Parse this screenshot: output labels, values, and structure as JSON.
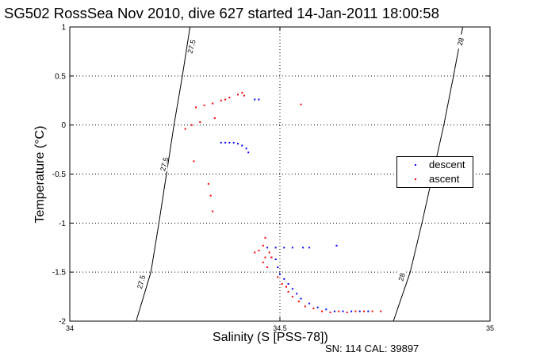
{
  "figure": {
    "title": "SG502 RossSea Nov 2010, dive 627 started 14-Jan-2011 18:00:58",
    "footer": "SN: 114  CAL: 39897"
  },
  "chart_data": {
    "type": "scatter",
    "title": "SG502 RossSea Nov 2010, dive 627 started 14-Jan-2011 18:00:58",
    "xlabel": "Salinity (S [PSS-78])",
    "ylabel": "Temperature (°C)",
    "xlim": [
      34,
      35
    ],
    "ylim": [
      -2,
      1
    ],
    "xticks": [
      "34",
      "34.5",
      "35"
    ],
    "yticks": [
      "-2",
      "-1.5",
      "-1",
      "-0.5",
      "0",
      "0.5",
      "1"
    ],
    "grid": true,
    "legend_position": "right",
    "contours": [
      {
        "level": "27.5",
        "points": [
          [
            34.286,
            1.0
          ],
          [
            34.268,
            0.5
          ],
          [
            34.248,
            0.0
          ],
          [
            34.23,
            -0.5
          ],
          [
            34.212,
            -1.0
          ],
          [
            34.193,
            -1.5
          ],
          [
            34.158,
            -2.0
          ]
        ],
        "labels": [
          {
            "text": "27.5",
            "at": [
              34.29,
              0.8
            ]
          },
          {
            "text": "27.5",
            "at": [
              34.225,
              -0.4
            ]
          },
          {
            "text": "27.5",
            "at": [
              34.17,
              -1.6
            ]
          }
        ]
      },
      {
        "level": "28",
        "points": [
          [
            34.935,
            1.0
          ],
          [
            34.913,
            0.5
          ],
          [
            34.89,
            0.0
          ],
          [
            34.864,
            -0.5
          ],
          [
            34.838,
            -1.0
          ],
          [
            34.81,
            -1.5
          ],
          [
            34.77,
            -2.0
          ]
        ],
        "labels": [
          {
            "text": "28",
            "at": [
              34.93,
              0.85
            ]
          },
          {
            "text": "28",
            "at": [
              34.79,
              -1.55
            ]
          }
        ]
      }
    ],
    "series": [
      {
        "name": "descent",
        "color": "#0000ff",
        "points": [
          [
            34.36,
            -0.18
          ],
          [
            34.37,
            -0.18
          ],
          [
            34.38,
            -0.18
          ],
          [
            34.39,
            -0.18
          ],
          [
            34.4,
            -0.19
          ],
          [
            34.41,
            -0.21
          ],
          [
            34.42,
            -0.24
          ],
          [
            34.425,
            -0.28
          ],
          [
            34.44,
            0.26
          ],
          [
            34.45,
            0.26
          ],
          [
            34.47,
            -1.25
          ],
          [
            34.49,
            -1.25
          ],
          [
            34.51,
            -1.25
          ],
          [
            34.53,
            -1.25
          ],
          [
            34.555,
            -1.25
          ],
          [
            34.57,
            -1.25
          ],
          [
            34.635,
            -1.23
          ],
          [
            34.48,
            -1.35
          ],
          [
            34.49,
            -1.37
          ],
          [
            34.495,
            -1.45
          ],
          [
            34.5,
            -1.52
          ],
          [
            34.51,
            -1.57
          ],
          [
            34.52,
            -1.62
          ],
          [
            34.53,
            -1.67
          ],
          [
            34.54,
            -1.72
          ],
          [
            34.55,
            -1.77
          ],
          [
            34.57,
            -1.82
          ],
          [
            34.59,
            -1.86
          ],
          [
            34.61,
            -1.88
          ],
          [
            34.63,
            -1.9
          ],
          [
            34.65,
            -1.9
          ],
          [
            34.67,
            -1.9
          ],
          [
            34.69,
            -1.9
          ],
          [
            34.71,
            -1.9
          ]
        ]
      },
      {
        "name": "ascent",
        "color": "#ff0000",
        "points": [
          [
            34.41,
            0.33
          ],
          [
            34.415,
            0.3
          ],
          [
            34.4,
            0.31
          ],
          [
            34.38,
            0.28
          ],
          [
            34.37,
            0.26
          ],
          [
            34.36,
            0.25
          ],
          [
            34.34,
            0.22
          ],
          [
            34.32,
            0.2
          ],
          [
            34.3,
            0.18
          ],
          [
            34.345,
            0.07
          ],
          [
            34.31,
            0.03
          ],
          [
            34.29,
            0.0
          ],
          [
            34.275,
            -0.04
          ],
          [
            34.295,
            -0.37
          ],
          [
            34.33,
            -0.6
          ],
          [
            34.335,
            -0.72
          ],
          [
            34.34,
            -0.88
          ],
          [
            34.55,
            0.21
          ],
          [
            34.465,
            -1.15
          ],
          [
            34.46,
            -1.23
          ],
          [
            34.45,
            -1.28
          ],
          [
            34.475,
            -1.3
          ],
          [
            34.465,
            -1.35
          ],
          [
            34.46,
            -1.4
          ],
          [
            34.47,
            -1.45
          ],
          [
            34.48,
            -1.35
          ],
          [
            34.44,
            -1.3
          ],
          [
            34.495,
            -1.55
          ],
          [
            34.505,
            -1.62
          ],
          [
            34.515,
            -1.65
          ],
          [
            34.52,
            -1.7
          ],
          [
            34.53,
            -1.75
          ],
          [
            34.545,
            -1.8
          ],
          [
            34.56,
            -1.85
          ],
          [
            34.58,
            -1.87
          ],
          [
            34.6,
            -1.9
          ],
          [
            34.62,
            -1.91
          ],
          [
            34.64,
            -1.9
          ],
          [
            34.66,
            -1.91
          ],
          [
            34.68,
            -1.9
          ],
          [
            34.7,
            -1.9
          ],
          [
            34.72,
            -1.9
          ],
          [
            34.74,
            -1.9
          ]
        ]
      }
    ]
  }
}
